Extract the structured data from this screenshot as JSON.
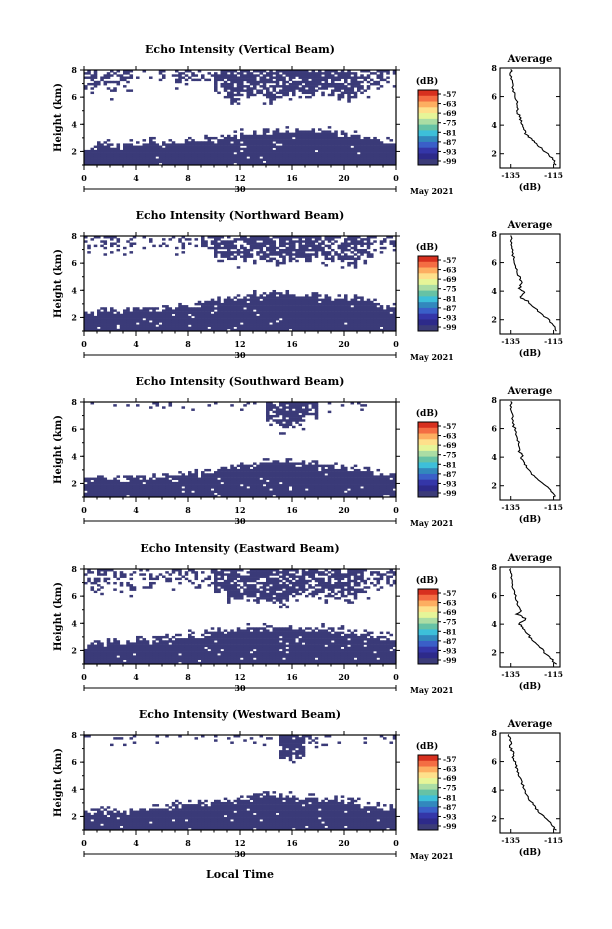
{
  "chart_data": {
    "type": "heatmap",
    "colorbar": {
      "unit": "(dB)",
      "ticks": [
        "-57",
        "-63",
        "-69",
        "-75",
        "-81",
        "-87",
        "-93",
        "-99"
      ],
      "colors": [
        "#d7301f",
        "#f46d43",
        "#fdae61",
        "#fee08b",
        "#e6f598",
        "#abdda4",
        "#66c2a5",
        "#3dbfd9",
        "#3288bd",
        "#3a5fc8",
        "#3436a8",
        "#2d2a8a",
        "#3b3b78"
      ]
    },
    "x_axis": {
      "label": "Local Time",
      "ticks": [
        "0",
        "4",
        "8",
        "12",
        "16",
        "20",
        "0"
      ],
      "date_label": "30",
      "month_label": "May 2021",
      "range": [
        0,
        24
      ]
    },
    "y_axis": {
      "label": "Height (km)",
      "ticks": [
        "2",
        "4",
        "6",
        "8"
      ],
      "range": [
        1,
        8
      ]
    },
    "avg_axis": {
      "title": "Average",
      "xlabel": "(dB)",
      "xticks": [
        "-135",
        "-115"
      ],
      "xrange": [
        -140,
        -112
      ],
      "yticks": [
        "2",
        "4",
        "6",
        "8"
      ]
    },
    "panels": [
      {
        "title": "Echo Intensity (Vertical Beam)",
        "low_top": [
          2.2,
          2.4,
          2.3,
          2.4,
          2.5,
          2.6,
          2.5,
          2.6,
          2.6,
          2.7,
          2.8,
          3.0,
          3.2,
          3.3,
          3.4,
          3.4,
          3.5,
          3.4,
          3.4,
          3.3,
          3.2,
          3.0,
          2.8,
          2.6
        ],
        "up_bottom": [
          6.5,
          6.4,
          6.3,
          6.6,
          7.0,
          7.1,
          7.2,
          7.1,
          7.2,
          7.0,
          6.5,
          6.0,
          6.2,
          6.1,
          6.0,
          6.1,
          6.3,
          6.2,
          6.4,
          6.0,
          5.9,
          6.2,
          6.8,
          7.0
        ],
        "up_density": [
          0.55,
          0.4,
          0.35,
          0.3,
          0.2,
          0.2,
          0.3,
          0.4,
          0.35,
          0.3,
          0.75,
          0.8,
          0.75,
          0.7,
          0.75,
          0.75,
          0.8,
          0.75,
          0.75,
          0.7,
          0.7,
          0.6,
          0.5,
          0.45
        ],
        "avg_profile": [
          [
            -114,
            1.2
          ],
          [
            -115,
            1.6
          ],
          [
            -118,
            2.0
          ],
          [
            -121,
            2.4
          ],
          [
            -124,
            2.8
          ],
          [
            -126,
            3.1
          ],
          [
            -128,
            3.4
          ],
          [
            -129,
            3.8
          ],
          [
            -130,
            4.2
          ],
          [
            -131,
            4.6
          ],
          [
            -132,
            5.0
          ],
          [
            -132,
            5.5
          ],
          [
            -133,
            6.0
          ],
          [
            -134,
            6.5
          ],
          [
            -134,
            7.0
          ],
          [
            -135,
            7.5
          ],
          [
            -135,
            7.9
          ]
        ]
      },
      {
        "title": "Echo Intensity (Northward Beam)",
        "low_top": [
          2.3,
          2.4,
          2.3,
          2.5,
          2.6,
          2.6,
          2.7,
          2.8,
          2.9,
          3.0,
          3.2,
          3.4,
          3.5,
          3.6,
          3.6,
          3.7,
          3.6,
          3.5,
          3.4,
          3.4,
          3.3,
          3.1,
          3.0,
          2.8
        ],
        "up_bottom": [
          7.2,
          7.0,
          6.8,
          7.1,
          7.4,
          7.3,
          7.3,
          7.2,
          7.3,
          7.0,
          6.5,
          6.1,
          6.3,
          6.4,
          6.2,
          6.2,
          6.4,
          6.3,
          6.4,
          6.1,
          6.0,
          6.3,
          6.8,
          7.2
        ],
        "up_density": [
          0.35,
          0.35,
          0.3,
          0.25,
          0.2,
          0.2,
          0.3,
          0.35,
          0.3,
          0.3,
          0.7,
          0.75,
          0.7,
          0.7,
          0.75,
          0.8,
          0.8,
          0.75,
          0.7,
          0.65,
          0.65,
          0.55,
          0.45,
          0.4
        ],
        "avg_profile": [
          [
            -114,
            1.2
          ],
          [
            -115,
            1.6
          ],
          [
            -118,
            2.1
          ],
          [
            -122,
            2.6
          ],
          [
            -125,
            3.0
          ],
          [
            -127,
            3.3
          ],
          [
            -131,
            3.6
          ],
          [
            -128,
            3.9
          ],
          [
            -131,
            4.2
          ],
          [
            -130,
            4.6
          ],
          [
            -131,
            5.0
          ],
          [
            -132,
            5.5
          ],
          [
            -133,
            6.0
          ],
          [
            -134,
            6.5
          ],
          [
            -134,
            7.0
          ],
          [
            -135,
            7.5
          ],
          [
            -135,
            7.9
          ]
        ]
      },
      {
        "title": "Echo Intensity (Southward Beam)",
        "low_top": [
          2.2,
          2.3,
          2.2,
          2.3,
          2.4,
          2.4,
          2.5,
          2.6,
          2.6,
          2.8,
          3.0,
          3.1,
          3.2,
          3.4,
          3.5,
          3.5,
          3.4,
          3.3,
          3.3,
          3.2,
          3.1,
          2.9,
          2.7,
          2.6
        ],
        "up_bottom": [
          8.0,
          7.9,
          7.6,
          7.8,
          8.0,
          7.7,
          7.5,
          7.6,
          7.8,
          7.7,
          7.9,
          7.9,
          7.8,
          7.6,
          6.5,
          6.2,
          6.6,
          7.0,
          7.5,
          7.8,
          8.0,
          7.9,
          7.8,
          7.7
        ],
        "up_density": [
          0.2,
          0.15,
          0.1,
          0.1,
          0.15,
          0.3,
          0.25,
          0.2,
          0.15,
          0.2,
          0.2,
          0.15,
          0.2,
          0.2,
          0.75,
          0.85,
          0.85,
          0.8,
          0.2,
          0.15,
          0.1,
          0.15,
          0.2,
          0.25
        ],
        "avg_profile": [
          [
            -114,
            1.2
          ],
          [
            -116,
            1.6
          ],
          [
            -119,
            2.0
          ],
          [
            -122,
            2.4
          ],
          [
            -125,
            2.8
          ],
          [
            -127,
            3.2
          ],
          [
            -129,
            3.6
          ],
          [
            -130,
            3.9
          ],
          [
            -129,
            4.1
          ],
          [
            -131,
            4.4
          ],
          [
            -131,
            4.8
          ],
          [
            -132,
            5.3
          ],
          [
            -133,
            5.9
          ],
          [
            -134,
            6.4
          ],
          [
            -134,
            7.0
          ],
          [
            -135,
            7.5
          ],
          [
            -135,
            7.9
          ]
        ]
      },
      {
        "title": "Echo Intensity (Eastward Beam)",
        "low_top": [
          2.3,
          2.5,
          2.4,
          2.5,
          2.6,
          2.7,
          2.8,
          2.9,
          3.0,
          3.2,
          3.3,
          3.4,
          3.5,
          3.6,
          3.6,
          3.6,
          3.6,
          3.5,
          3.5,
          3.4,
          3.3,
          3.1,
          2.9,
          2.8
        ],
        "up_bottom": [
          6.8,
          6.7,
          6.6,
          6.5,
          6.6,
          6.8,
          7.0,
          7.1,
          7.0,
          6.9,
          6.2,
          5.6,
          5.8,
          5.7,
          5.5,
          5.6,
          6.0,
          6.1,
          6.0,
          5.8,
          5.7,
          6.0,
          6.5,
          6.8
        ],
        "up_density": [
          0.45,
          0.4,
          0.35,
          0.35,
          0.3,
          0.3,
          0.35,
          0.45,
          0.35,
          0.3,
          0.75,
          0.8,
          0.75,
          0.75,
          0.8,
          0.8,
          0.8,
          0.75,
          0.7,
          0.65,
          0.65,
          0.55,
          0.45,
          0.45
        ],
        "avg_profile": [
          [
            -114,
            1.2
          ],
          [
            -116,
            1.6
          ],
          [
            -119,
            2.0
          ],
          [
            -122,
            2.5
          ],
          [
            -125,
            2.9
          ],
          [
            -127,
            3.3
          ],
          [
            -129,
            3.7
          ],
          [
            -131,
            4.0
          ],
          [
            -128,
            4.4
          ],
          [
            -132,
            4.7
          ],
          [
            -130,
            5.0
          ],
          [
            -132,
            5.4
          ],
          [
            -133,
            6.0
          ],
          [
            -134,
            6.5
          ],
          [
            -134,
            7.0
          ],
          [
            -135,
            7.5
          ],
          [
            -135,
            7.9
          ]
        ]
      },
      {
        "title": "Echo Intensity (Westward Beam)",
        "low_top": [
          2.3,
          2.4,
          2.3,
          2.3,
          2.4,
          2.5,
          2.6,
          2.7,
          2.8,
          2.9,
          3.0,
          3.1,
          3.3,
          3.4,
          3.5,
          3.4,
          3.3,
          3.3,
          3.2,
          3.1,
          3.0,
          2.8,
          2.7,
          2.6
        ],
        "up_bottom": [
          7.8,
          7.7,
          7.5,
          7.6,
          7.8,
          7.7,
          7.8,
          7.9,
          7.8,
          7.7,
          7.8,
          7.6,
          7.7,
          7.8,
          7.8,
          6.3,
          6.5,
          7.3,
          7.6,
          7.8,
          7.9,
          7.8,
          7.7,
          7.7
        ],
        "up_density": [
          0.25,
          0.2,
          0.2,
          0.15,
          0.15,
          0.2,
          0.2,
          0.2,
          0.15,
          0.15,
          0.2,
          0.2,
          0.2,
          0.2,
          0.3,
          0.9,
          0.85,
          0.3,
          0.2,
          0.15,
          0.15,
          0.2,
          0.2,
          0.25
        ],
        "avg_profile": [
          [
            -114,
            1.2
          ],
          [
            -116,
            1.6
          ],
          [
            -119,
            2.1
          ],
          [
            -122,
            2.5
          ],
          [
            -124,
            2.9
          ],
          [
            -126,
            3.3
          ],
          [
            -128,
            3.8
          ],
          [
            -129,
            4.2
          ],
          [
            -130,
            4.7
          ],
          [
            -131,
            5.1
          ],
          [
            -132,
            5.5
          ],
          [
            -133,
            5.9
          ],
          [
            -134,
            6.2
          ],
          [
            -134,
            6.6
          ],
          [
            -135,
            7.0
          ],
          [
            -135,
            7.5
          ],
          [
            -136,
            7.9
          ]
        ]
      }
    ]
  }
}
